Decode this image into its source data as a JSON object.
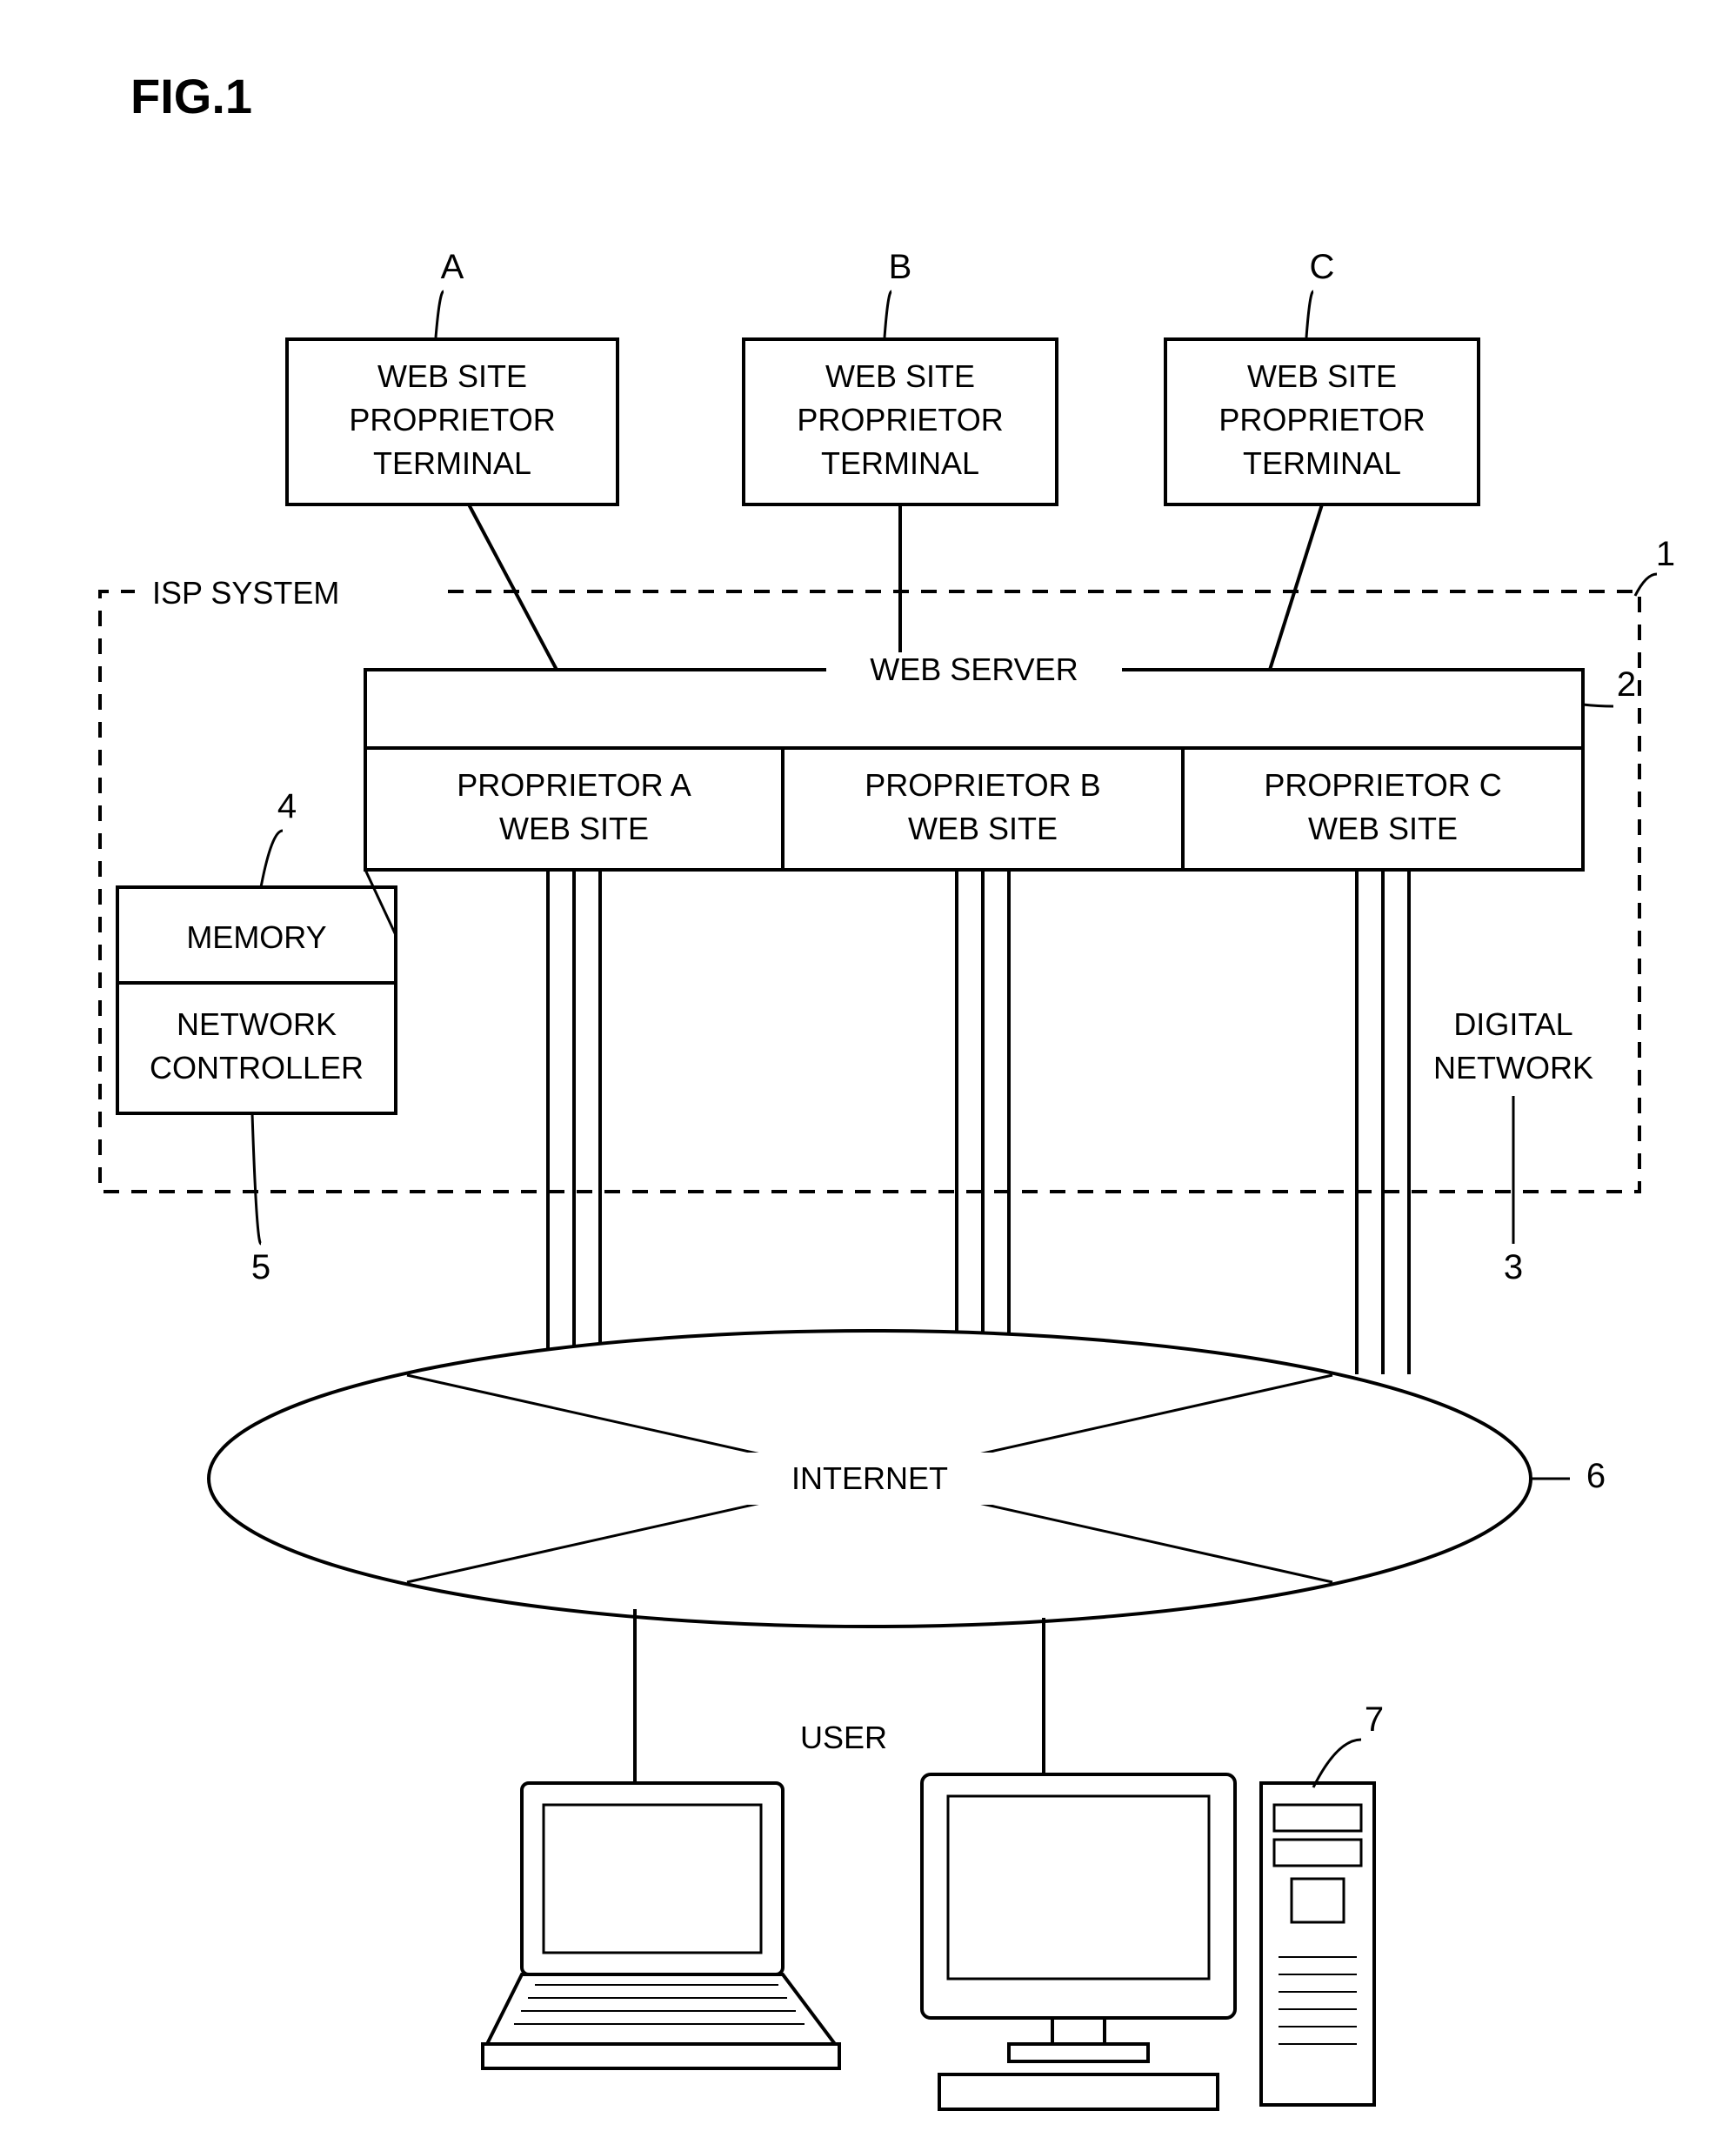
{
  "figure_label": "FIG.1",
  "terminals": {
    "tag_a": "A",
    "tag_b": "B",
    "tag_c": "C",
    "line1": "WEB SITE",
    "line2": "PROPRIETOR",
    "line3": "TERMINAL"
  },
  "isp_label": "ISP SYSTEM",
  "web_server_label": "WEB SERVER",
  "sites": {
    "a1": "PROPRIETOR A",
    "a2": "WEB SITE",
    "b1": "PROPRIETOR B",
    "b2": "WEB SITE",
    "c1": "PROPRIETOR C",
    "c2": "WEB SITE"
  },
  "memory_label": "MEMORY",
  "nc_line1": "NETWORK",
  "nc_line2": "CONTROLLER",
  "dn_line1": "DIGITAL",
  "dn_line2": "NETWORK",
  "internet_label": "INTERNET",
  "user_label": "USER",
  "refs": {
    "r1": "1",
    "r2": "2",
    "r3": "3",
    "r4": "4",
    "r5": "5",
    "r6": "6",
    "r7": "7"
  },
  "style": {
    "stroke": "#000000",
    "stroke_width": 4,
    "stroke_width_thin": 3,
    "dash": "18 14",
    "font_title": 56,
    "font_label": 36,
    "font_tag": 40,
    "font_ref": 40
  }
}
